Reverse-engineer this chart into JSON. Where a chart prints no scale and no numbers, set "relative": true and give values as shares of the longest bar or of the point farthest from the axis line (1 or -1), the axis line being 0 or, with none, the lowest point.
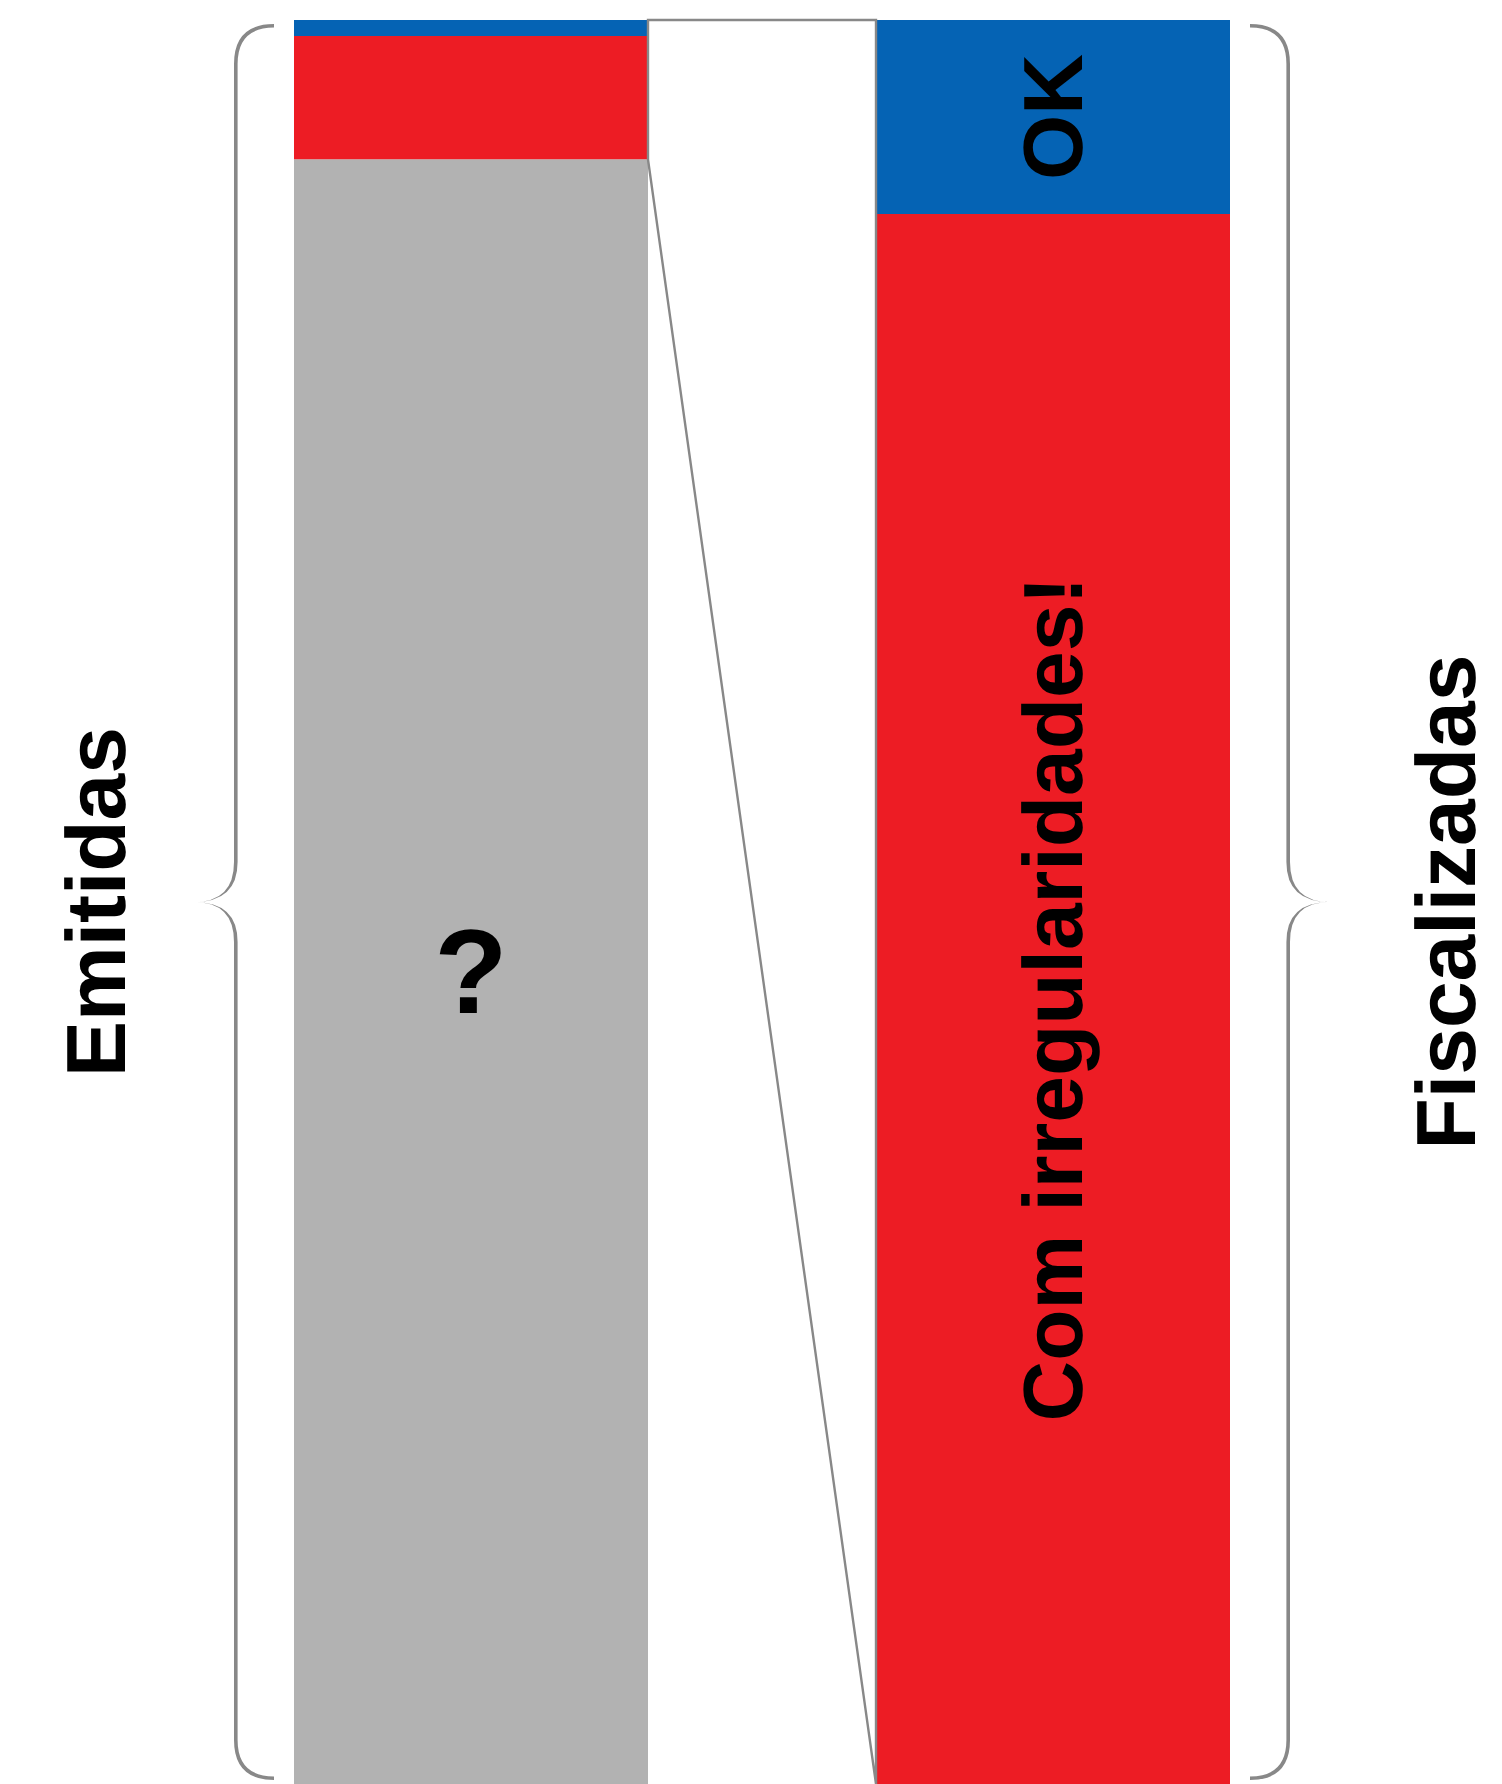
{
  "chart_data": {
    "type": "bar",
    "stacked": true,
    "relative": true,
    "categories": [
      "Emitidas",
      "Fiscalizadas"
    ],
    "series": [
      {
        "name": "?",
        "color": "#b2b2b2",
        "values": [
          0.921,
          null
        ]
      },
      {
        "name": "Com irregularidades!",
        "color": "#ed1c24",
        "values": [
          0.07,
          0.89
        ]
      },
      {
        "name": "OK",
        "color": "#0563b4",
        "values": [
          0.009,
          0.11
        ]
      }
    ]
  }
}
